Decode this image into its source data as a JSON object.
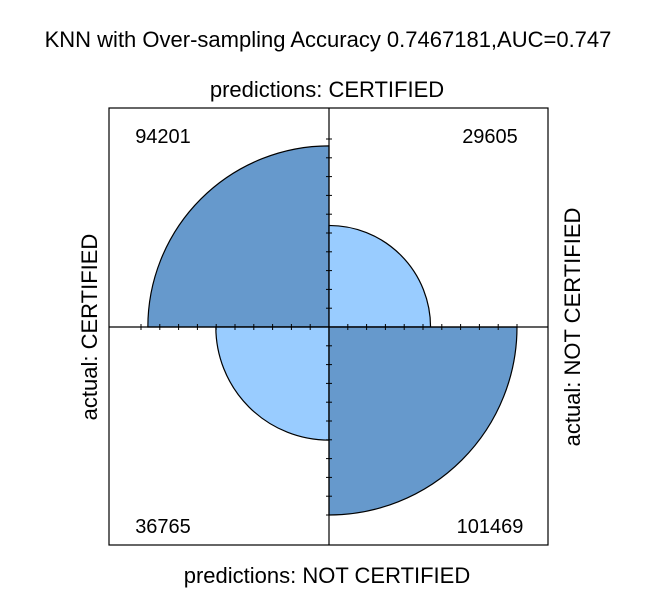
{
  "chart_data": {
    "type": "fourfold",
    "title": "KNN with Over-sampling Accuracy 0.7467181,AUC=0.747",
    "top_label": "predictions: CERTIFIED",
    "bottom_label": "predictions: NOT CERTIFIED",
    "left_label": "actual: CERTIFIED",
    "right_label": "actual: NOT CERTIFIED",
    "cells": [
      {
        "quadrant": "top-left",
        "value": 94201,
        "label": "94201",
        "kind": "correct"
      },
      {
        "quadrant": "top-right",
        "value": 29605,
        "label": "29605",
        "kind": "error"
      },
      {
        "quadrant": "bottom-left",
        "value": 36765,
        "label": "36765",
        "kind": "error"
      },
      {
        "quadrant": "bottom-right",
        "value": 101469,
        "label": "101469",
        "kind": "correct"
      }
    ],
    "colors": {
      "correct": "#6699cc",
      "error": "#99ccff",
      "outline": "#000000",
      "background": "#ffffff"
    }
  }
}
